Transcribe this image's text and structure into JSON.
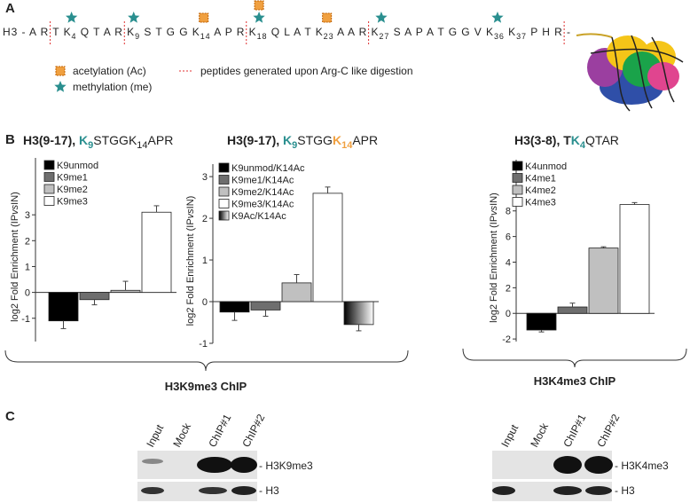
{
  "panel_a": {
    "label": "A",
    "sequence": [
      {
        "text": "H3 - A R",
        "cut": true
      },
      {
        "text": " T "
      },
      {
        "text": "K",
        "sub": "4",
        "mods": [
          "me"
        ]
      },
      {
        "text": " Q T A R",
        "cut": true
      },
      {
        "text": " K",
        "sub": "9",
        "mods": [
          "me"
        ]
      },
      {
        "text": " S T G G "
      },
      {
        "text": "K",
        "sub": "14",
        "mods": [
          "ac"
        ]
      },
      {
        "text": " A P R",
        "cut": true
      },
      {
        "text": " K",
        "sub": "18",
        "mods": [
          "ac",
          "me"
        ]
      },
      {
        "text": " Q L A T "
      },
      {
        "text": "K",
        "sub": "23",
        "mods": [
          "ac"
        ]
      },
      {
        "text": " A A R",
        "cut": true
      },
      {
        "text": " K",
        "sub": "27",
        "mods": [
          "me"
        ]
      },
      {
        "text": " S A P A T G G V "
      },
      {
        "text": "K",
        "sub": "36",
        "mods": [
          "me"
        ]
      },
      {
        "text": " K",
        "sub": "37"
      },
      {
        "text": " P H R",
        "cut": true
      },
      {
        "text": " -"
      }
    ],
    "legend": [
      {
        "mod": "ac",
        "label": "acetylation (Ac)"
      },
      {
        "mod": "me",
        "label": "methylation (me)"
      },
      {
        "mod": "cut",
        "label": "peptides generated upon Arg-C like digestion"
      }
    ]
  },
  "panel_b": {
    "label": "B",
    "groups": [
      "H3K9me3 ChIP",
      "H3K4me3 ChIP"
    ]
  },
  "chart_data": [
    {
      "type": "bar",
      "title": [
        {
          "text": "H3(9-17), ",
          "bold": true
        },
        {
          "text": "K",
          "sub": "9",
          "color": "#2a8f8f",
          "bold": true
        },
        {
          "text": "STGGK",
          "sub": "14"
        },
        {
          "text": "APR"
        }
      ],
      "ylabel": [
        {
          "text": "log2 Fold Enrichment (IP"
        },
        {
          "text": "vs",
          "italic": true
        },
        {
          "text": "IN)"
        }
      ],
      "categories": [
        "K9unmod",
        "K9me1",
        "K9me2",
        "K9me3"
      ],
      "colors": [
        "#000000",
        "#6e6e6e",
        "#c0c0c0",
        "#ffffff"
      ],
      "values": [
        -1.1,
        -0.28,
        0.08,
        3.1
      ],
      "errors": [
        0.3,
        0.2,
        0.35,
        0.25
      ],
      "ylim": [
        -1.9,
        5.2
      ],
      "yticks": [
        -1,
        0,
        1,
        2,
        3
      ]
    },
    {
      "type": "bar",
      "title": [
        {
          "text": "H3(9-17), ",
          "bold": true
        },
        {
          "text": "K",
          "sub": "9",
          "color": "#2a8f8f",
          "bold": true
        },
        {
          "text": "STGG"
        },
        {
          "text": "K",
          "sub": "14",
          "color": "#f0a040",
          "bold": true
        },
        {
          "text": "APR"
        }
      ],
      "ylabel": [
        {
          "text": "log2 Fold Enrichment (IP"
        },
        {
          "text": "vs",
          "italic": true
        },
        {
          "text": "IN)"
        }
      ],
      "categories": [
        "K9unmod/K14Ac",
        "K9me1/K14Ac",
        "K9me2/K14Ac",
        "K9me3/K14Ac",
        "K9Ac/K14Ac"
      ],
      "colors": [
        "#000000",
        "#6e6e6e",
        "#c0c0c0",
        "#ffffff",
        "#000000"
      ],
      "gradients": [
        4
      ],
      "values": [
        -0.25,
        -0.2,
        0.45,
        2.6,
        -0.55
      ],
      "errors": [
        0.2,
        0.15,
        0.2,
        0.15,
        0.15
      ],
      "ylim": [
        -1,
        3.3
      ],
      "yticks": [
        -1,
        0,
        1,
        2,
        3
      ]
    },
    {
      "type": "bar",
      "title": [
        {
          "text": "H3(3-8), T",
          "bold": true
        },
        {
          "text": "K",
          "sub": "4",
          "color": "#2a8f8f",
          "bold": true
        },
        {
          "text": "QTAR"
        }
      ],
      "ylabel": [
        {
          "text": "log2 Fold Enrichment (IP"
        },
        {
          "text": "vs",
          "italic": true
        },
        {
          "text": "IN)"
        }
      ],
      "categories": [
        "K4unmod",
        "K4me1",
        "K4me2",
        "K4me3"
      ],
      "colors": [
        "#000000",
        "#6e6e6e",
        "#c0c0c0",
        "#ffffff"
      ],
      "values": [
        -1.3,
        0.5,
        5.1,
        8.5
      ],
      "errors": [
        0.15,
        0.3,
        0.1,
        0.15
      ],
      "ylim": [
        -2.2,
        12
      ],
      "yticks": [
        -2,
        0,
        2,
        4,
        6,
        8
      ]
    }
  ],
  "panel_c": {
    "label": "C",
    "blots": [
      {
        "lanes": [
          "Input",
          "Mock",
          "ChIP#1",
          "ChIP#2"
        ],
        "rows": [
          "- H3K9me3",
          "- H3"
        ]
      },
      {
        "lanes": [
          "Input",
          "Mock",
          "ChIP#1",
          "ChIP#2"
        ],
        "rows": [
          "- H3K4me3",
          "- H3"
        ]
      }
    ]
  }
}
